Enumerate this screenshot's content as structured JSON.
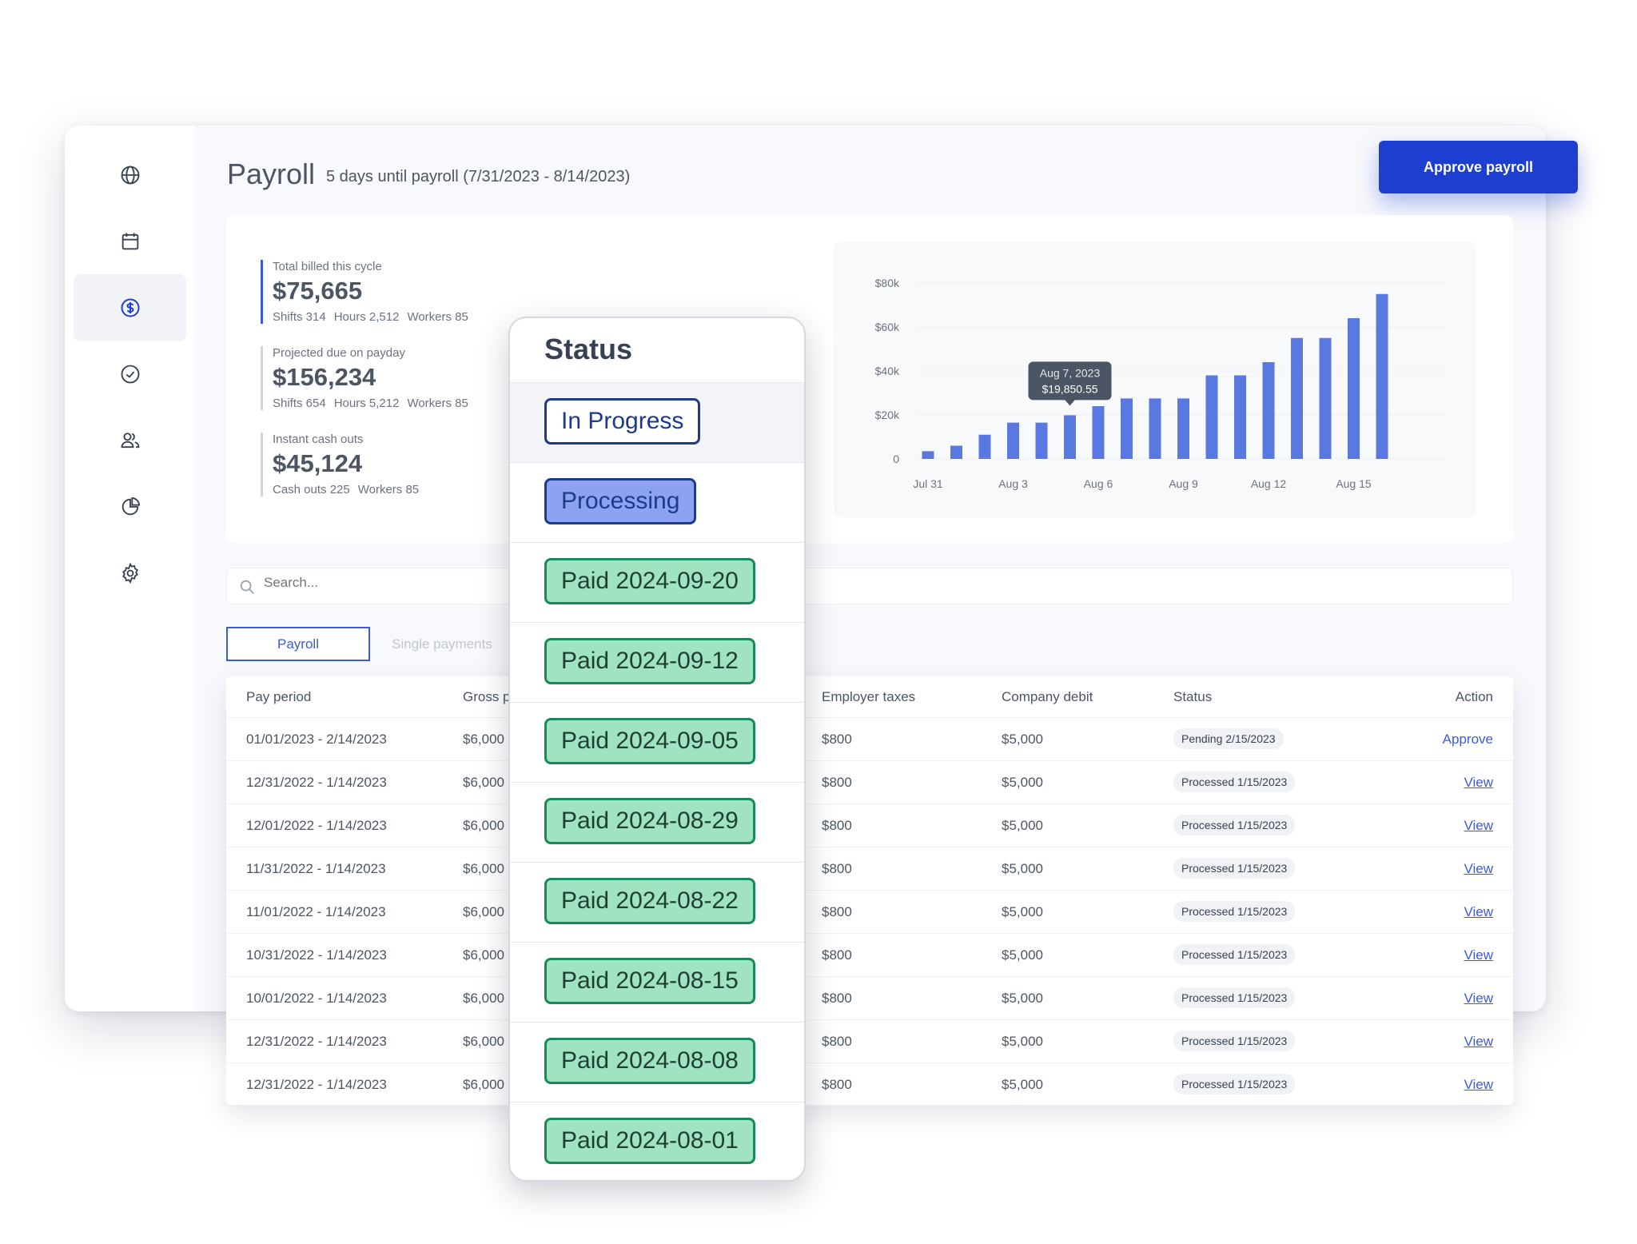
{
  "header": {
    "title": "Payroll",
    "subtitle": "5 days until payroll (7/31/2023 - 8/14/2023)",
    "approve_label": "Approve payroll"
  },
  "sidebar": {
    "items": [
      {
        "icon": "globe-icon"
      },
      {
        "icon": "calendar-icon"
      },
      {
        "icon": "dollar-icon",
        "active": true
      },
      {
        "icon": "check-circle-icon"
      },
      {
        "icon": "users-icon"
      },
      {
        "icon": "pie-chart-icon"
      },
      {
        "icon": "gear-icon"
      }
    ]
  },
  "stats": [
    {
      "label": "Total billed this cycle",
      "value": "$75,665",
      "meta": [
        "Shifts 314",
        "Hours 2,512",
        "Workers 85"
      ]
    },
    {
      "label": "Projected due on payday",
      "value": "$156,234",
      "meta": [
        "Shifts 654",
        "Hours 5,212",
        "Workers 85"
      ]
    },
    {
      "label": "Instant cash outs",
      "value": "$45,124",
      "meta": [
        "Cash outs 225",
        "Workers 85"
      ]
    }
  ],
  "chart_data": {
    "type": "bar",
    "x_ticks": [
      "Jul 31",
      "Aug 3",
      "Aug 6",
      "Aug 9",
      "Aug 12",
      "Aug 15"
    ],
    "y_ticks": [
      "0",
      "$20k",
      "$40k",
      "$60k",
      "$80k"
    ],
    "ylim": [
      0,
      80000
    ],
    "values": [
      3500,
      6000,
      11000,
      16500,
      16500,
      19850.55,
      24000,
      27500,
      27500,
      27500,
      38000,
      38000,
      44000,
      55000,
      55000,
      64000,
      75000
    ],
    "tooltip": {
      "date": "Aug 7, 2023",
      "value": "$19,850.55",
      "index": 5
    },
    "color": "#5a79e0",
    "grid": true
  },
  "search": {
    "placeholder": "Search..."
  },
  "tabs": [
    {
      "label": "Payroll",
      "active": true
    },
    {
      "label": "Single payments",
      "active": false
    }
  ],
  "table": {
    "headers": {
      "pay_period": "Pay period",
      "gross": "Gross p",
      "employer_taxes": "Employer taxes",
      "company_debit": "Company debit",
      "status": "Status",
      "action": "Action"
    },
    "rows": [
      {
        "period": "01/01/2023 - 2/14/2023",
        "gross": "$6,000",
        "taxes": "$800",
        "debit": "$5,000",
        "status": "Pending 2/15/2023",
        "action": "Approve"
      },
      {
        "period": "12/31/2022 - 1/14/2023",
        "gross": "$6,000",
        "taxes": "$800",
        "debit": "$5,000",
        "status": "Processed 1/15/2023",
        "action": "View"
      },
      {
        "period": "12/01/2022 - 1/14/2023",
        "gross": "$6,000",
        "taxes": "$800",
        "debit": "$5,000",
        "status": "Processed 1/15/2023",
        "action": "View"
      },
      {
        "period": "11/31/2022 - 1/14/2023",
        "gross": "$6,000",
        "taxes": "$800",
        "debit": "$5,000",
        "status": "Processed 1/15/2023",
        "action": "View"
      },
      {
        "period": "11/01/2022 - 1/14/2023",
        "gross": "$6,000",
        "taxes": "$800",
        "debit": "$5,000",
        "status": "Processed 1/15/2023",
        "action": "View"
      },
      {
        "period": "10/31/2022 - 1/14/2023",
        "gross": "$6,000",
        "taxes": "$800",
        "debit": "$5,000",
        "status": "Processed 1/15/2023",
        "action": "View"
      },
      {
        "period": "10/01/2022 - 1/14/2023",
        "gross": "$6,000",
        "taxes": "$800",
        "debit": "$5,000",
        "status": "Processed 1/15/2023",
        "action": "View"
      },
      {
        "period": "12/31/2022 - 1/14/2023",
        "gross": "$6,000",
        "taxes": "$800",
        "debit": "$5,000",
        "status": "Processed 1/15/2023",
        "action": "View"
      },
      {
        "period": "12/31/2022 - 1/14/2023",
        "gross": "$6,000",
        "taxes": "$800",
        "debit": "$5,000",
        "status": "Processed 1/15/2023",
        "action": "View"
      }
    ]
  },
  "status_popup": {
    "title": "Status",
    "options": [
      {
        "label": "In Progress",
        "style": "progress",
        "selected": true
      },
      {
        "label": "Processing",
        "style": "processing"
      },
      {
        "label": "Paid 2024-09-20",
        "style": "paid"
      },
      {
        "label": "Paid 2024-09-12",
        "style": "paid"
      },
      {
        "label": "Paid 2024-09-05",
        "style": "paid"
      },
      {
        "label": "Paid 2024-08-29",
        "style": "paid"
      },
      {
        "label": "Paid 2024-08-22",
        "style": "paid"
      },
      {
        "label": "Paid 2024-08-15",
        "style": "paid"
      },
      {
        "label": "Paid 2024-08-08",
        "style": "paid"
      },
      {
        "label": "Paid 2024-08-01",
        "style": "paid"
      }
    ]
  }
}
